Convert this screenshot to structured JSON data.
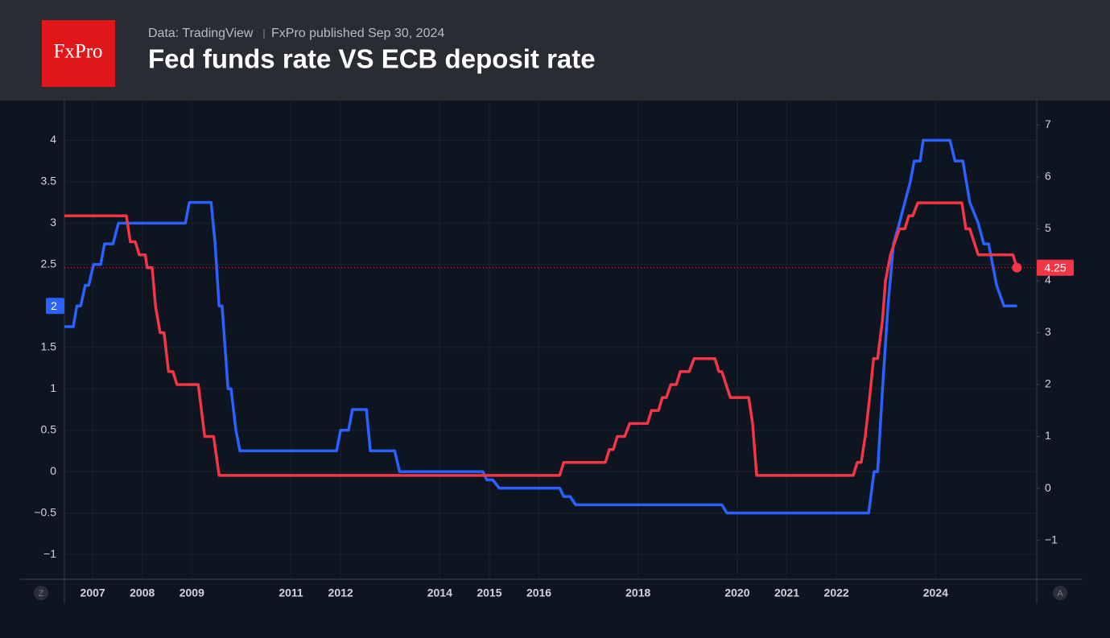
{
  "logo": "FxPro",
  "header": {
    "source": "Data: TradingView",
    "published": "FxPro published Sep 30, 2024"
  },
  "chart_data": {
    "type": "line",
    "title": "Fed funds rate VS ECB deposit rate",
    "xlim": [
      2006.43,
      2026.04
    ],
    "xticks": [
      2007,
      2008,
      2009,
      2011,
      2012,
      2014,
      2015,
      2016,
      2018,
      2020,
      2021,
      2022,
      2024
    ],
    "ylim": [
      -1.3,
      4.48
    ],
    "yticks": [
      {
        "value": -1,
        "label": "−1"
      },
      {
        "value": -0.5,
        "label": "−0.5"
      },
      0,
      0.5,
      1,
      1.5,
      2.5,
      3,
      3.5,
      4
    ],
    "y2lim": [
      -1.75,
      7.47
    ],
    "y2ticks": [
      {
        "value": -1,
        "label": "−1"
      },
      0,
      1,
      2,
      3,
      4,
      5,
      6,
      7
    ],
    "grid": true,
    "series": [
      {
        "color": "#2962ff",
        "axis": "y",
        "x": [
          2006.43,
          2006.61,
          2006.68,
          2006.76,
          2006.85,
          2006.92,
          2007.02,
          2007.16,
          2007.24,
          2007.41,
          2007.52,
          2008.87,
          2008.95,
          2009.39,
          2009.47,
          2009.55,
          2009.61,
          2009.73,
          2009.79,
          2009.89,
          2009.97,
          2011.92,
          2012.0,
          2012.16,
          2012.24,
          2012.52,
          2012.6,
          2013.09,
          2013.19,
          2014.87,
          2014.95,
          2015.07,
          2015.2,
          2016.42,
          2016.5,
          2016.63,
          2016.74,
          2019.69,
          2019.79,
          2022.65,
          2022.76,
          2022.83,
          2022.93,
          2023.04,
          2023.15,
          2023.27,
          2023.38,
          2023.49,
          2023.57,
          2023.69,
          2023.75,
          2024.29,
          2024.39,
          2024.55,
          2024.69,
          2024.86,
          2024.97,
          2025.07,
          2025.23,
          2025.38,
          2025.64
        ],
        "values": [
          1.75,
          1.75,
          2,
          2,
          2.25,
          2.25,
          2.5,
          2.5,
          2.75,
          2.75,
          3,
          3,
          3.25,
          3.25,
          2.75,
          2,
          2,
          1,
          1,
          0.5,
          0.25,
          0.25,
          0.5,
          0.5,
          0.75,
          0.75,
          0.25,
          0.25,
          0,
          0,
          -0.1,
          -0.1,
          -0.2,
          -0.2,
          -0.3,
          -0.3,
          -0.4,
          -0.4,
          -0.5,
          -0.5,
          0,
          0,
          1,
          2,
          2.75,
          3,
          3.25,
          3.5,
          3.75,
          3.75,
          4,
          4,
          3.75,
          3.75,
          3.25,
          3,
          2.75,
          2.75,
          2.25,
          2,
          2
        ]
      },
      {
        "color": "#f23645",
        "axis": "y2",
        "x": [
          2006.43,
          2007.68,
          2007.76,
          2007.86,
          2007.94,
          2008.06,
          2008.1,
          2008.2,
          2008.27,
          2008.36,
          2008.44,
          2008.53,
          2008.62,
          2008.7,
          2009.13,
          2009.26,
          2009.44,
          2009.55,
          2016.42,
          2016.5,
          2017.34,
          2017.42,
          2017.5,
          2017.58,
          2017.73,
          2017.83,
          2018.19,
          2018.27,
          2018.41,
          2018.49,
          2018.57,
          2018.66,
          2018.77,
          2018.85,
          2019.03,
          2019.13,
          2019.55,
          2019.63,
          2019.69,
          2019.86,
          2020.23,
          2020.31,
          2020.39,
          2022.34,
          2022.42,
          2022.5,
          2022.58,
          2022.67,
          2022.75,
          2022.83,
          2022.93,
          2022.99,
          2023.09,
          2023.18,
          2023.27,
          2023.38,
          2023.46,
          2023.54,
          2023.64,
          2024.53,
          2024.61,
          2024.69,
          2024.86,
          2025.56,
          2025.64
        ],
        "values": [
          5.25,
          5.25,
          4.75,
          4.75,
          4.5,
          4.5,
          4.25,
          4.25,
          3.5,
          3,
          3,
          2.25,
          2.25,
          2,
          2,
          1,
          1,
          0.25,
          0.25,
          0.5,
          0.5,
          0.75,
          0.75,
          1,
          1,
          1.25,
          1.25,
          1.5,
          1.5,
          1.75,
          1.75,
          2,
          2,
          2.25,
          2.25,
          2.5,
          2.5,
          2.25,
          2.25,
          1.75,
          1.75,
          1.25,
          0.25,
          0.25,
          0.5,
          0.5,
          1,
          1.75,
          2.5,
          2.5,
          3.25,
          4,
          4.5,
          4.75,
          5,
          5,
          5.25,
          5.25,
          5.5,
          5.5,
          5,
          5,
          4.5,
          4.5,
          4.25
        ]
      }
    ]
  },
  "controls": [
    "Z",
    "A"
  ]
}
